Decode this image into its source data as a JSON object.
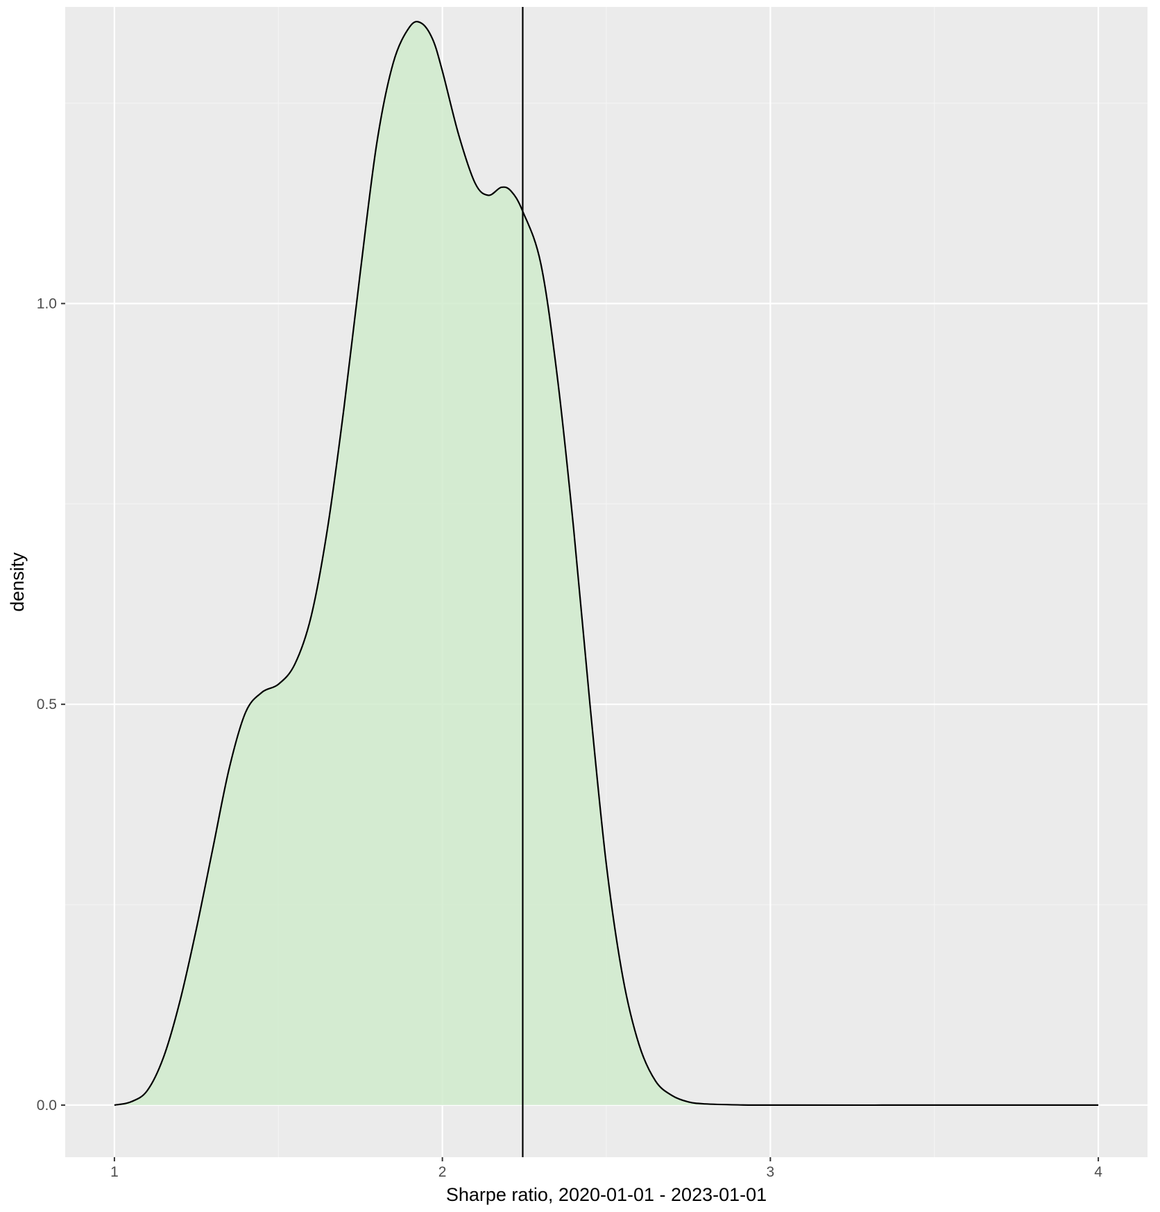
{
  "chart_data": {
    "type": "area",
    "title": "",
    "xlabel": "Sharpe ratio, 2020-01-01 - 2023-01-01",
    "ylabel": "density",
    "xlim": [
      0.85,
      4.15
    ],
    "ylim": [
      -0.065,
      1.37
    ],
    "x_ticks": [
      1,
      2,
      3,
      4
    ],
    "x_tick_labels": [
      "1",
      "2",
      "3",
      "4"
    ],
    "y_ticks": [
      0.0,
      0.5,
      1.0
    ],
    "y_tick_labels": [
      "0.0",
      "0.5",
      "1.0"
    ],
    "x_minor_ticks": [
      1.5,
      2.5,
      3.5
    ],
    "y_minor_ticks": [
      0.25,
      0.75,
      1.25
    ],
    "grid": true,
    "legend": "none",
    "vline_x": 2.245,
    "series": [
      {
        "x": [
          1.0,
          1.05,
          1.1,
          1.15,
          1.2,
          1.25,
          1.3,
          1.35,
          1.4,
          1.45,
          1.5,
          1.55,
          1.6,
          1.65,
          1.7,
          1.75,
          1.8,
          1.85,
          1.9,
          1.935,
          1.97,
          2.0,
          2.05,
          2.1,
          2.14,
          2.18,
          2.21,
          2.245,
          2.3,
          2.35,
          2.4,
          2.45,
          2.5,
          2.55,
          2.6,
          2.65,
          2.7,
          2.75,
          2.8,
          2.9,
          3.0,
          3.5,
          4.0
        ],
        "values": [
          0.0,
          0.004,
          0.018,
          0.06,
          0.13,
          0.22,
          0.32,
          0.42,
          0.49,
          0.515,
          0.525,
          0.55,
          0.61,
          0.72,
          0.87,
          1.04,
          1.2,
          1.3,
          1.345,
          1.35,
          1.33,
          1.29,
          1.21,
          1.15,
          1.135,
          1.145,
          1.14,
          1.115,
          1.05,
          0.91,
          0.72,
          0.5,
          0.3,
          0.16,
          0.075,
          0.03,
          0.012,
          0.004,
          0.0015,
          0.0003,
          0.0,
          0.0,
          0.0
        ]
      }
    ],
    "colors": {
      "panel_background": "#ebebeb",
      "grid_major": "#ffffff",
      "grid_minor": "#f4f4f4",
      "area_fill": "#d0ebcc",
      "line": "#000000",
      "tick_text": "#4d4d4d",
      "axis_title": "#000000"
    }
  }
}
